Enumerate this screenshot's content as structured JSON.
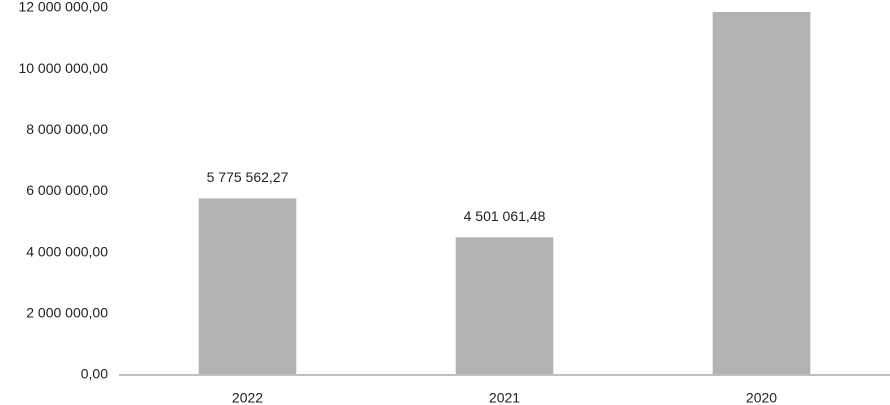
{
  "chart_data": {
    "type": "bar",
    "categories": [
      "2022",
      "2021",
      "2020"
    ],
    "values": [
      5775562.27,
      4501061.48,
      11870000
    ],
    "value_labels": [
      "5 775 562,27",
      "4 501 061,48",
      null
    ],
    "color": "#b3b3b3",
    "ylim": [
      0,
      12000000
    ],
    "yticks": [
      {
        "value": 0,
        "label": "0,00"
      },
      {
        "value": 2000000,
        "label": "2 000 000,00"
      },
      {
        "value": 4000000,
        "label": "4 000 000,00"
      },
      {
        "value": 6000000,
        "label": "6 000 000,00"
      },
      {
        "value": 8000000,
        "label": "8 000 000,00"
      },
      {
        "value": 10000000,
        "label": "10 000 000,00"
      },
      {
        "value": 12000000,
        "label": "12 000 000,00"
      }
    ],
    "grid": false
  }
}
